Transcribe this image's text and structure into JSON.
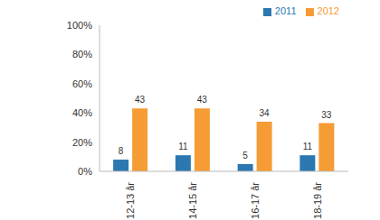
{
  "chart_data": {
    "type": "bar",
    "categories": [
      "12-13 år",
      "14-15 år",
      "16-17 år",
      "18-19 år"
    ],
    "series": [
      {
        "name": "2011",
        "color": "#2b78b0",
        "values": [
          8,
          11,
          5,
          11
        ]
      },
      {
        "name": "2012",
        "color": "#f59c34",
        "values": [
          43,
          43,
          34,
          33
        ]
      }
    ],
    "ylim": [
      0,
      100
    ],
    "yticks": [
      {
        "value": 0,
        "label": "0%"
      },
      {
        "value": 20,
        "label": "20%"
      },
      {
        "value": 40,
        "label": "40%"
      },
      {
        "value": 60,
        "label": "60%"
      },
      {
        "value": 80,
        "label": "80%"
      },
      {
        "value": 100,
        "label": "100%"
      }
    ],
    "grid": false,
    "legend": "top-right",
    "data_labels": true
  }
}
